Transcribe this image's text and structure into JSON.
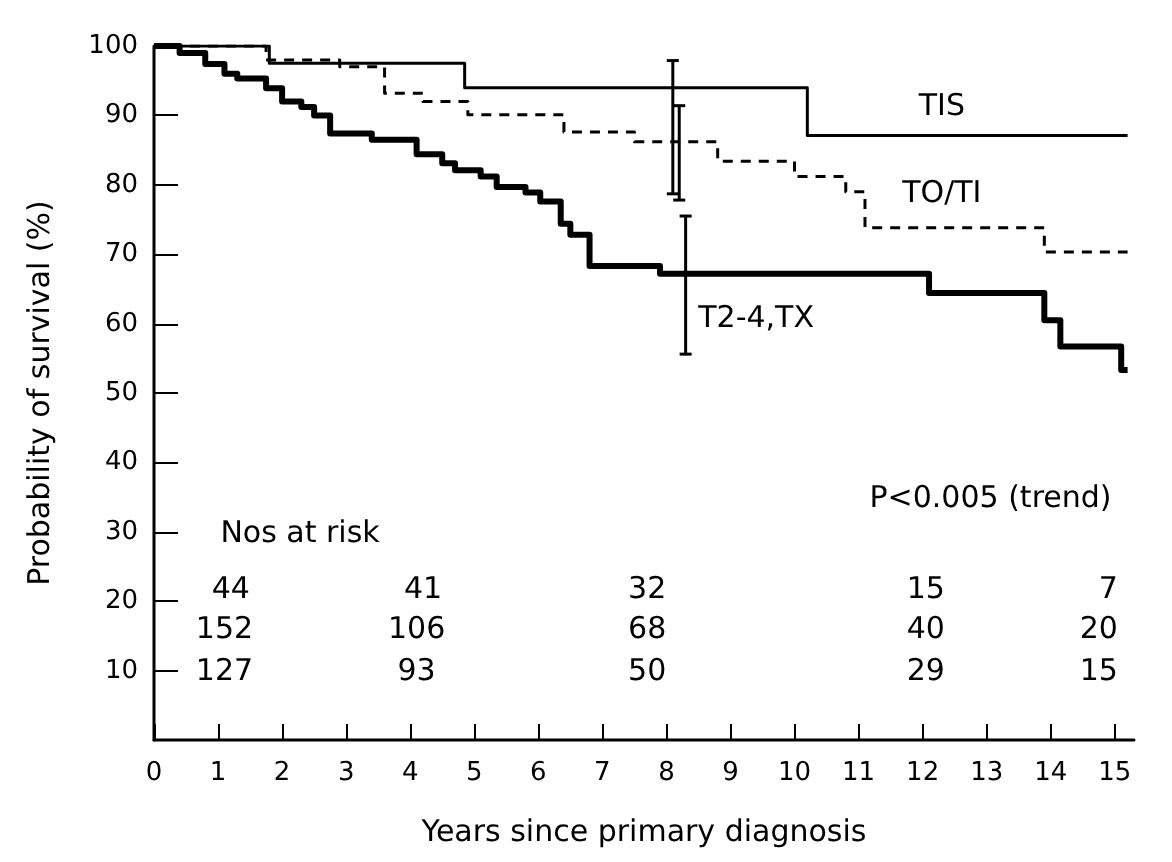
{
  "chart_data": {
    "type": "step",
    "xlabel": "Years since primary diagnosis",
    "ylabel": "Probability of survival (%)",
    "xlim": [
      0,
      15.3
    ],
    "xticks": [
      0,
      1,
      2,
      3,
      4,
      5,
      6,
      7,
      8,
      9,
      10,
      11,
      12,
      13,
      14,
      15
    ],
    "ylim": [
      0,
      100
    ],
    "yticks": [
      10,
      20,
      30,
      40,
      50,
      60,
      70,
      80,
      90,
      100
    ],
    "grid": false,
    "legend": false,
    "series": [
      {
        "name": "TIS",
        "color": "#000000",
        "line_style": "solid",
        "x": [
          0,
          1.8,
          4.85,
          8.1,
          10.2,
          15.2
        ],
        "values": [
          100,
          97.5,
          94,
          94,
          87.1,
          87.1
        ],
        "errors": [
          null,
          null,
          null,
          [
            78.7,
            97.9
          ],
          null,
          null
        ]
      },
      {
        "name": "TO/TI",
        "color": "#000000",
        "line_style": "dashed",
        "x": [
          0,
          1.75,
          2.9,
          3.6,
          4.2,
          4.9,
          6.4,
          7.5,
          8.2,
          8.8,
          10,
          10.8,
          11.1,
          13.9,
          15.2
        ],
        "values": [
          100,
          98,
          97,
          93.2,
          92,
          90.1,
          87.6,
          86.2,
          86.2,
          83.4,
          81.2,
          79,
          73.8,
          70.3,
          70.3
        ],
        "errors": [
          null,
          null,
          null,
          null,
          null,
          null,
          null,
          null,
          [
            77.8,
            91.4
          ],
          null,
          null,
          null,
          null,
          null,
          null
        ]
      },
      {
        "name": "T2-4,TX",
        "color": "#000000",
        "line_style": "solid",
        "x": [
          0,
          0.4,
          0.8,
          1.1,
          1.3,
          1.75,
          2,
          2.3,
          2.5,
          2.75,
          3.4,
          4.1,
          4.5,
          4.7,
          5.1,
          5.35,
          5.8,
          6.03,
          6.35,
          6.5,
          6.8,
          7.9,
          8.3,
          12.1,
          13.9,
          14.15,
          15.1,
          15.2
        ],
        "values": [
          100,
          99,
          97.4,
          96,
          95.3,
          93.9,
          92,
          91.2,
          90,
          87.4,
          86.5,
          84.4,
          83.1,
          82.1,
          81.2,
          79.7,
          78.9,
          77.6,
          74.4,
          72.8,
          68.3,
          67.2,
          67.2,
          64.4,
          60.5,
          56.7,
          53.3,
          53.3
        ],
        "errors": [
          null,
          null,
          null,
          null,
          null,
          null,
          null,
          null,
          null,
          null,
          null,
          null,
          null,
          null,
          null,
          null,
          null,
          null,
          null,
          null,
          null,
          null,
          [
            55.6,
            75.5
          ],
          null,
          null,
          null,
          null,
          null
        ]
      }
    ],
    "annotations": [
      "P<0.005 (trend)",
      "Nos at risk",
      "44",
      "41",
      "32",
      "15",
      "7",
      "152",
      "106",
      "68",
      "40",
      "20",
      "127",
      "93",
      "50",
      "29",
      "15"
    ]
  }
}
